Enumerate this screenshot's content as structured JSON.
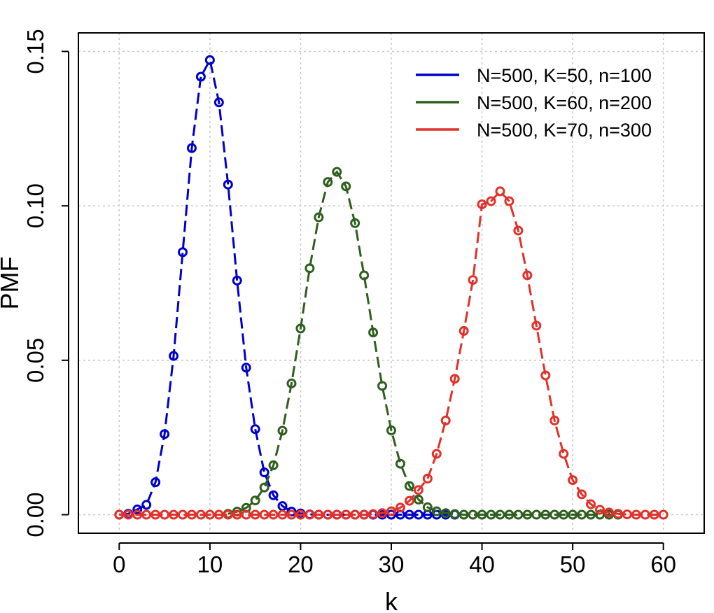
{
  "chart_data": {
    "type": "scatter",
    "xlabel": "k",
    "ylabel": "PMF",
    "xlim": [
      -4.5,
      64.5
    ],
    "ylim": [
      -0.006,
      0.156
    ],
    "x_ticks": [
      0,
      10,
      20,
      30,
      40,
      50,
      60
    ],
    "x_tick_labels": [
      "0",
      "10",
      "20",
      "30",
      "40",
      "50",
      "60"
    ],
    "y_ticks": [
      0.0,
      0.05,
      0.1,
      0.15
    ],
    "y_tick_labels": [
      "0.00",
      "0.05",
      "0.10",
      "0.15"
    ],
    "grid": true,
    "legend_position": "top-right",
    "markers": "open circles at integer k with dashed connecting line",
    "series": [
      {
        "name": "N=500, K=50, n=100",
        "color": "#0000cc",
        "x": [
          0,
          1,
          2,
          3,
          4,
          5,
          6,
          7,
          8,
          9,
          10,
          11,
          12,
          13,
          14,
          15,
          16,
          17,
          18,
          19,
          20,
          21,
          22,
          23,
          24,
          25,
          26,
          27,
          28,
          29,
          30,
          31,
          32,
          33,
          34,
          35,
          36,
          37
        ],
        "y": [
          0.0,
          0.0003,
          0.0017,
          0.0032,
          0.0105,
          0.0261,
          0.0514,
          0.085,
          0.1187,
          0.1418,
          0.1472,
          0.1335,
          0.1069,
          0.0758,
          0.0476,
          0.0277,
          0.0137,
          0.0063,
          0.0028,
          0.001,
          0.0004,
          0.0001,
          0,
          0,
          0,
          0,
          0,
          0,
          0,
          0,
          0,
          0,
          0,
          0,
          0,
          0,
          0,
          0
        ]
      },
      {
        "name": "N=500, K=60, n=200",
        "color": "#2f5f1f",
        "x": [
          12,
          13,
          14,
          15,
          16,
          17,
          18,
          19,
          20,
          21,
          22,
          23,
          24,
          25,
          26,
          27,
          28,
          29,
          30,
          31,
          32,
          33,
          34,
          35,
          36,
          37,
          38,
          39,
          40,
          41,
          42,
          43,
          44,
          45,
          46,
          47,
          48,
          49,
          50,
          51,
          52,
          53,
          54,
          55
        ],
        "y": [
          0.0003,
          0.001,
          0.0022,
          0.0046,
          0.0088,
          0.016,
          0.0272,
          0.0425,
          0.0603,
          0.0798,
          0.0963,
          0.1077,
          0.111,
          0.1063,
          0.0944,
          0.0775,
          0.059,
          0.0417,
          0.0273,
          0.0165,
          0.0093,
          0.0049,
          0.0024,
          0.0011,
          0.0005,
          0.0002,
          0,
          0,
          0,
          0,
          0,
          0,
          0,
          0,
          0,
          0,
          0,
          0,
          0,
          0,
          0,
          0,
          0,
          0
        ]
      },
      {
        "name": "N=500, K=70, n=300",
        "color": "#e0322a",
        "x": [
          0,
          1,
          2,
          3,
          4,
          5,
          6,
          7,
          8,
          9,
          10,
          11,
          12,
          13,
          14,
          15,
          16,
          17,
          18,
          19,
          20,
          21,
          22,
          23,
          24,
          25,
          26,
          27,
          28,
          29,
          30,
          31,
          32,
          33,
          34,
          35,
          36,
          37,
          38,
          39,
          40,
          41,
          42,
          43,
          44,
          45,
          46,
          47,
          48,
          49,
          50,
          51,
          52,
          53,
          54,
          55,
          56,
          57,
          58,
          59,
          60
        ],
        "y": [
          0,
          0,
          0,
          0,
          0,
          0,
          0,
          0,
          0,
          0,
          0,
          0,
          0,
          0,
          0,
          0,
          0,
          0,
          0,
          0,
          0,
          0,
          0,
          0,
          0,
          0,
          0,
          0,
          0.0002,
          0.0005,
          0.0011,
          0.0023,
          0.0045,
          0.008,
          0.0117,
          0.0197,
          0.0305,
          0.044,
          0.0595,
          0.076,
          0.1005,
          0.1015,
          0.1047,
          0.1015,
          0.092,
          0.0775,
          0.0612,
          0.0451,
          0.0305,
          0.0197,
          0.0112,
          0.0066,
          0.0034,
          0.0016,
          0.0007,
          0.0003,
          0.0001,
          0,
          0,
          0,
          0
        ]
      }
    ]
  }
}
